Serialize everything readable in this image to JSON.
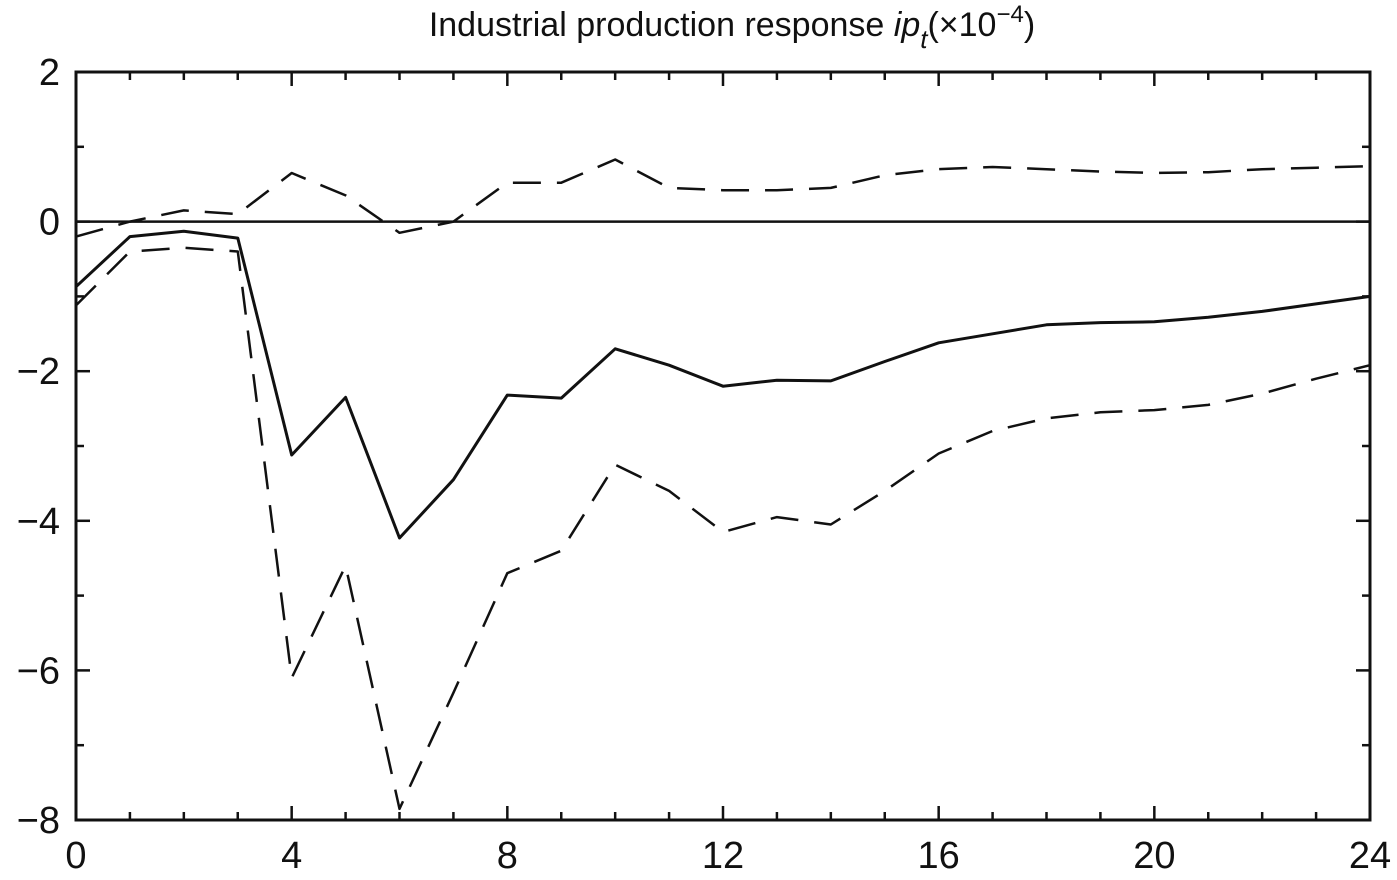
{
  "chart_data": {
    "type": "line",
    "title": {
      "text": "Industrial production response ",
      "symbol": "ip",
      "subscript": "t",
      "scale_prefix": "(×10",
      "scale_exponent": "−4",
      "scale_suffix": ")"
    },
    "xlabel": "",
    "ylabel": "",
    "xlim": [
      0,
      24
    ],
    "ylim": [
      -8,
      2
    ],
    "xticks": [
      0,
      4,
      8,
      12,
      16,
      20,
      24
    ],
    "xtick_labels": [
      "0",
      "4",
      "8",
      "12",
      "16",
      "20",
      "24"
    ],
    "yticks": [
      -8,
      -6,
      -4,
      -2,
      0,
      2
    ],
    "ytick_labels": [
      "−8",
      "−6",
      "−4",
      "−2",
      "0",
      "2"
    ],
    "minor_tick_step_x": 1,
    "minor_tick_step_y": 1,
    "grid": false,
    "zero_line": true,
    "x": [
      0,
      1,
      2,
      3,
      4,
      5,
      6,
      7,
      8,
      9,
      10,
      11,
      12,
      13,
      14,
      15,
      16,
      17,
      18,
      19,
      20,
      21,
      22,
      23,
      24
    ],
    "series": [
      {
        "style": "solid",
        "color": "#111111",
        "values": [
          -0.87,
          -0.2,
          -0.13,
          -0.22,
          -3.12,
          -2.35,
          -4.23,
          -3.45,
          -2.32,
          -2.36,
          -1.7,
          -1.92,
          -2.2,
          -2.12,
          -2.13,
          -1.87,
          -1.62,
          -1.5,
          -1.38,
          -1.35,
          -1.34,
          -1.28,
          -1.2,
          -1.1,
          -1.0
        ]
      },
      {
        "style": "dashed",
        "color": "#111111",
        "values": [
          -0.2,
          0.0,
          0.15,
          0.1,
          0.65,
          0.35,
          -0.15,
          0.0,
          0.52,
          0.52,
          0.83,
          0.45,
          0.42,
          0.42,
          0.45,
          0.62,
          0.7,
          0.73,
          0.7,
          0.67,
          0.65,
          0.66,
          0.7,
          0.72,
          0.74
        ]
      },
      {
        "style": "dashed",
        "color": "#111111",
        "values": [
          -1.12,
          -0.4,
          -0.35,
          -0.4,
          -6.1,
          -4.6,
          -7.85,
          -6.3,
          -4.7,
          -4.4,
          -3.25,
          -3.6,
          -4.15,
          -3.95,
          -4.05,
          -3.6,
          -3.1,
          -2.8,
          -2.63,
          -2.55,
          -2.52,
          -2.45,
          -2.3,
          -2.1,
          -1.92
        ]
      }
    ]
  }
}
